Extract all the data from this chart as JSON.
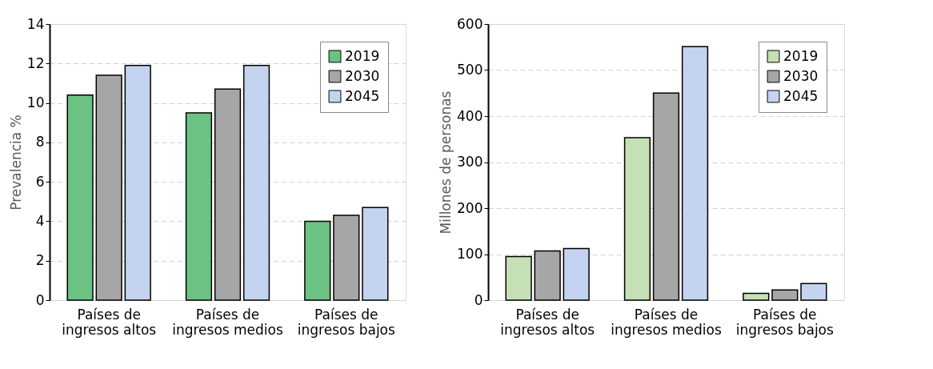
{
  "chart_data": [
    {
      "type": "bar",
      "categories": [
        "Países de ingresos altos",
        "Países de ingresos medios",
        "Países de ingresos bajos"
      ],
      "ylabel": "Prevalencia %",
      "ylim": [
        0,
        14
      ],
      "yticks": [
        0,
        2,
        4,
        6,
        8,
        10,
        12,
        14
      ],
      "grid": "y",
      "legend": "top right",
      "series": [
        {
          "name": "2019",
          "color": "#6cc283",
          "values": [
            10.4,
            9.5,
            4.0
          ]
        },
        {
          "name": "2030",
          "color": "#a6a6a6",
          "values": [
            11.4,
            10.7,
            4.3
          ]
        },
        {
          "name": "2045",
          "color": "#c4d3ef",
          "values": [
            11.9,
            11.9,
            4.7
          ]
        }
      ]
    },
    {
      "type": "bar",
      "categories": [
        "Países de ingresos altos",
        "Países de ingresos medios",
        "Países de ingresos bajos"
      ],
      "ylabel": "Millones de personas",
      "ylim": [
        0,
        600
      ],
      "yticks": [
        0,
        100,
        200,
        300,
        400,
        500,
        600
      ],
      "grid": "y",
      "legend": "top right",
      "series": [
        {
          "name": "2019",
          "color": "#c5e0b4",
          "values": [
            95,
            353,
            15
          ]
        },
        {
          "name": "2030",
          "color": "#a6a6a6",
          "values": [
            107,
            450,
            22
          ]
        },
        {
          "name": "2045",
          "color": "#c4d3ef",
          "values": [
            112,
            551,
            36
          ]
        }
      ]
    }
  ]
}
